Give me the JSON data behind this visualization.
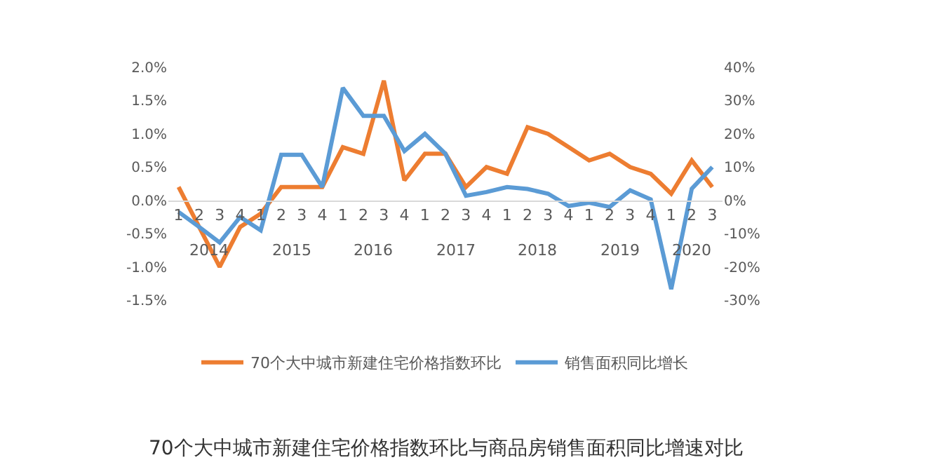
{
  "chart_data": {
    "type": "line",
    "title": "70个大中城市新建住宅价格指数环比与商品房销售面积同比增速对比",
    "categories": [
      "1",
      "2",
      "3",
      "4",
      "1",
      "2",
      "3",
      "4",
      "1",
      "2",
      "3",
      "4",
      "1",
      "2",
      "3",
      "4",
      "1",
      "2",
      "3",
      "4",
      "1",
      "2",
      "3",
      "4",
      "1",
      "2",
      "3"
    ],
    "annotations": [
      "2014",
      "2015",
      "2016",
      "2017",
      "2018",
      "2019",
      "2020"
    ],
    "series": [
      {
        "name": "70个大中城市新建住宅价格指数环比",
        "color": "#ed7d31",
        "values": [
          0.2,
          -0.4,
          -1.0,
          -0.4,
          -0.2,
          0.2,
          0.2,
          0.2,
          0.8,
          0.7,
          1.8,
          0.3,
          0.7,
          0.7,
          0.2,
          0.5,
          0.4,
          1.1,
          1.0,
          0.8,
          0.6,
          0.7,
          0.5,
          0.4,
          0.1,
          0.6,
          0.2
        ]
      },
      {
        "name": "销售面积同比增长",
        "color": "#5b9bd5",
        "axis": "y2",
        "values": [
          -3.5,
          -8,
          -12.7,
          -5,
          -9,
          13.7,
          13.7,
          4,
          33.8,
          25.4,
          25.4,
          14.8,
          20,
          14,
          1.4,
          2.5,
          4,
          3.4,
          2,
          -1.7,
          -0.7,
          -2,
          3,
          0.3,
          -26.7,
          3.5,
          10
        ]
      }
    ],
    "ylim": [
      -1.5,
      2.0
    ],
    "yticks": [
      {
        "value": -1.5,
        "label": "-1.5%"
      },
      {
        "value": -1.0,
        "label": "-1.0%"
      },
      {
        "value": -0.5,
        "label": "-0.5%"
      },
      {
        "value": 0,
        "label": "0.0%"
      },
      {
        "value": 0.5,
        "label": "0.5%"
      },
      {
        "value": 1.0,
        "label": "1.0%"
      },
      {
        "value": 1.5,
        "label": "1.5%"
      },
      {
        "value": 2.0,
        "label": "2.0%"
      }
    ],
    "y2lim": [
      -30,
      40
    ],
    "y2ticks": [
      {
        "value": -30,
        "label": "-30%"
      },
      {
        "value": -20,
        "label": "-20%"
      },
      {
        "value": -10,
        "label": "-10%"
      },
      {
        "value": 0,
        "label": "0%"
      },
      {
        "value": 10,
        "label": "10%"
      },
      {
        "value": 20,
        "label": "20%"
      },
      {
        "value": 30,
        "label": "30%"
      },
      {
        "value": 40,
        "label": "40%"
      }
    ],
    "legend": "bottom",
    "grid": false,
    "marker": "none",
    "line_style": "solid"
  }
}
